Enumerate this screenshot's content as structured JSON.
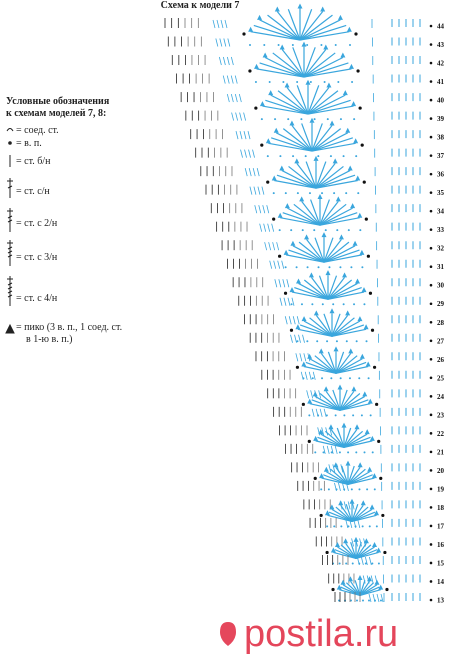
{
  "title": "Схема к модели 7",
  "legend": {
    "heading": [
      "Условные обозначения",
      "к схемам моделей 7, 8:"
    ],
    "items": [
      "= соед. ст.",
      "= в. п.",
      "= ст. б/н",
      "= ст. с/н",
      "= ст. с 2/н",
      "= ст. с 3/н",
      "= ст. с 4/н",
      "= пико (3 в. п., 1 соед. ст.",
      "в 1-ю в. п.)"
    ]
  },
  "row_numbers": [
    44,
    43,
    42,
    41,
    40,
    39,
    38,
    37,
    36,
    35,
    34,
    33,
    32,
    31,
    30,
    29,
    28,
    27,
    26,
    25,
    24,
    23,
    22,
    21,
    20,
    19,
    18,
    17,
    16,
    15,
    14,
    13
  ],
  "watermark": "postila.ru"
}
